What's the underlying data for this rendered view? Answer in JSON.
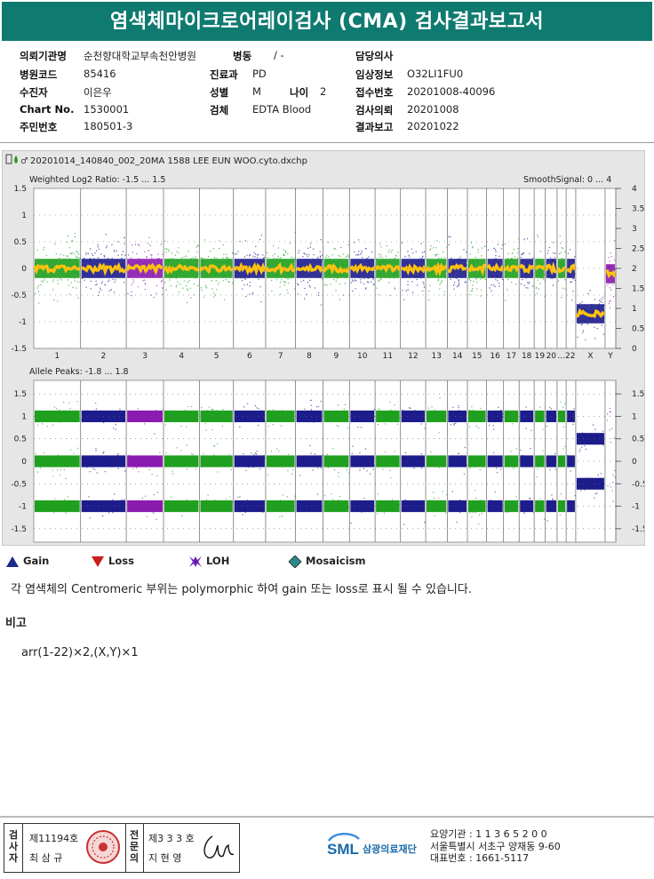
{
  "title": "염색체마이크로어레이검사 (CMA) 검사결과보고서",
  "patient": {
    "institution_label": "의뢰기관명",
    "institution_value": "순천향대학교부속천안병원",
    "ward_label": "병동",
    "ward_value": "/ -",
    "doctor_label": "담당의사",
    "doctor_value": "",
    "hospital_code_label": "병원코드",
    "hospital_code_value": "85416",
    "dept_label": "진료과",
    "dept_value": "PD",
    "clinical_label": "임상정보",
    "clinical_value": "O32LI1FU0",
    "patient_label": "수진자",
    "patient_value": "이은우",
    "sex_label": "성별",
    "sex_value": "M",
    "age_label": "나이",
    "age_value": "2",
    "receipt_label": "접수번호",
    "receipt_value": "20201008-40096",
    "chart_label": "Chart No.",
    "chart_value": "1530001",
    "specimen_label": "검체",
    "specimen_value": "EDTA Blood",
    "request_label": "검사의뢰",
    "request_value": "20201008",
    "id_label": "주민번호",
    "id_value": "180501-3",
    "report_label": "결과보고",
    "report_value": "20201022"
  },
  "chart_data": {
    "type": "scatter",
    "file_name": "20201014_140840_002_20MA 1588 LEE EUN WOO.cyto.dxchp",
    "top_panel": {
      "title": "Weighted Log2 Ratio: -1.5 ... 1.5",
      "right_title": "SmoothSignal: 0 ... 4",
      "ylim": [
        -1.5,
        1.5
      ],
      "y_ticks": [
        "1.5",
        "1",
        "0.5",
        "0",
        "-0.5",
        "-1",
        "-1.5"
      ],
      "y2lim": [
        0,
        4
      ],
      "y2_ticks": [
        "4",
        "3.5",
        "3",
        "2.5",
        "2",
        "1.5",
        "1",
        "0.5",
        "0"
      ]
    },
    "bottom_panel": {
      "title": "Allele Peaks: -1.8 ... 1.8",
      "ylim": [
        -1.8,
        1.8
      ],
      "y_ticks": [
        "1.5",
        "1",
        "0.5",
        "0",
        "-0.5",
        "-1",
        "-1.5"
      ]
    },
    "chromosomes": [
      "1",
      "2",
      "3",
      "4",
      "5",
      "6",
      "7",
      "8",
      "9",
      "10",
      "11",
      "12",
      "13",
      "14",
      "15",
      "16",
      "17",
      "18",
      "19",
      "20",
      "21",
      "22",
      "X",
      "Y"
    ],
    "x_labels": [
      "1",
      "2",
      "3",
      "4",
      "5",
      "6",
      "7",
      "8",
      "9",
      "10",
      "11",
      "12",
      "13",
      "14",
      "15",
      "16",
      "17",
      "18",
      "19",
      "20",
      "...22",
      "X",
      "Y"
    ],
    "relative_sizes": [
      249,
      243,
      198,
      191,
      181,
      171,
      159,
      146,
      141,
      136,
      135,
      134,
      115,
      107,
      102,
      90,
      83,
      80,
      59,
      63,
      48,
      51,
      156,
      57
    ],
    "colors": {
      "odd": "#1fa01f",
      "even": "#1c1c8c",
      "loh": "#8a1ab0",
      "smooth": "#ffc20e"
    },
    "segment_colors_top": [
      "green",
      "even",
      "purple",
      "green",
      "green",
      "even",
      "green",
      "even",
      "green",
      "even",
      "green",
      "even",
      "green",
      "even",
      "green",
      "even",
      "green",
      "even",
      "green",
      "even",
      "green",
      "even",
      "even",
      "purple"
    ],
    "segment_colors_bottom": [
      "green",
      "even",
      "purple",
      "green",
      "green",
      "even",
      "green",
      "even",
      "green",
      "even",
      "green",
      "even",
      "green",
      "even",
      "green",
      "even",
      "green",
      "even",
      "green",
      "even",
      "green",
      "even",
      "even",
      "purple"
    ],
    "log2_levels": [
      0,
      0,
      0,
      0,
      0,
      0,
      0,
      0,
      0,
      0,
      0,
      0,
      0,
      0,
      0,
      0,
      0,
      0,
      0,
      0,
      0,
      0,
      -0.85,
      -0.1
    ],
    "allele_bands": {
      "autosome": [
        1,
        0,
        -1
      ],
      "X": [
        0.5,
        -0.5
      ]
    }
  },
  "legend": {
    "gain": "Gain",
    "loss": "Loss",
    "loh": "LOH",
    "mosaicism": "Mosaicism",
    "gain_color": "#1c2a8a",
    "loss_color": "#c81e1e",
    "loh_color": "#6a1ab0",
    "mosaic_color": "#2a8a8a"
  },
  "note": "각 염색체의 Centromeric 부위는 polymorphic 하여 gain 또는 loss로 표시 될 수 있습니다.",
  "remark_title": "비고",
  "karyotype": "arr(1-22)×2,(X,Y)×1",
  "footer": {
    "examiner_label": "검사자",
    "examiner_no": "제11194호",
    "examiner_name": "최 삼 규",
    "specialist_label": "전문의",
    "specialist_no": "제3 3 3 호",
    "specialist_name": "지 현 영",
    "org_name": "삼광의료재단",
    "line1": "요양기관 : 1 1 3 6 5 2 0 0",
    "line2": "서울특별시 서초구 양재동 9-60",
    "line3": "대표번호 : 1661-5117"
  }
}
